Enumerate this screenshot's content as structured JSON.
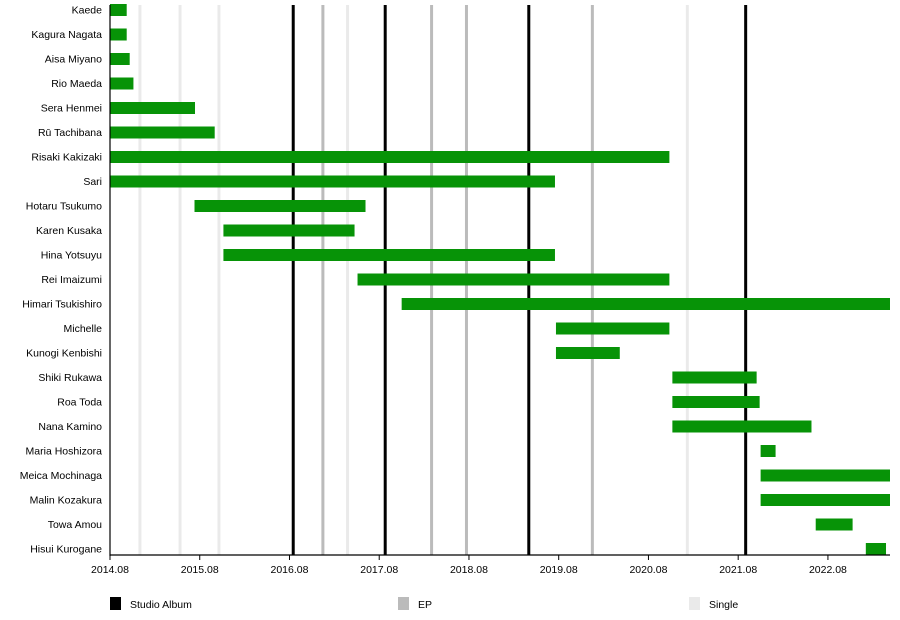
{
  "chart_data": {
    "type": "timeline",
    "x_axis": {
      "range": [
        "2014-08-01",
        "2023-04-10"
      ],
      "tick_labels": [
        "2014.08",
        "2015.08",
        "2016.08",
        "2017.08",
        "2018.08",
        "2019.08",
        "2020.08",
        "2021.08",
        "2022.08"
      ]
    },
    "colors": {
      "member_bar": "#079307",
      "Studio Album": "#000000",
      "EP": "#bbbbbb",
      "Single": "#eaeaea"
    },
    "members": [
      {
        "name": "Kaede",
        "start": "2014-08-01",
        "end": "2014-10-08"
      },
      {
        "name": "Kagura Nagata",
        "start": "2014-08-01",
        "end": "2014-10-08"
      },
      {
        "name": "Aisa Miyano",
        "start": "2014-08-01",
        "end": "2014-10-20"
      },
      {
        "name": "Rio Maeda",
        "start": "2014-08-01",
        "end": "2014-11-05"
      },
      {
        "name": "Sera Henmei",
        "start": "2014-08-01",
        "end": "2015-07-12"
      },
      {
        "name": "Rū Tachibana",
        "start": "2014-08-01",
        "end": "2015-10-01"
      },
      {
        "name": "Risaki Kakizaki",
        "start": "2014-08-01",
        "end": "2020-10-25"
      },
      {
        "name": "Sari",
        "start": "2014-08-01",
        "end": "2019-07-16"
      },
      {
        "name": "Hotaru Tsukumo",
        "start": "2015-07-10",
        "end": "2017-06-06"
      },
      {
        "name": "Karen Kusaka",
        "start": "2015-11-06",
        "end": "2017-04-22"
      },
      {
        "name": "Hina Yotsuyu",
        "start": "2015-11-06",
        "end": "2019-07-16"
      },
      {
        "name": "Rei Imaizumi",
        "start": "2017-05-04",
        "end": "2020-10-25"
      },
      {
        "name": "Himari Tsukishiro",
        "start": "2017-11-01",
        "end": "2023-04-10"
      },
      {
        "name": "Michelle",
        "start": "2019-07-20",
        "end": "2020-10-25"
      },
      {
        "name": "Kunogi Kenbishi",
        "start": "2019-07-20",
        "end": "2020-04-06"
      },
      {
        "name": "Shiki Rukawa",
        "start": "2020-11-07",
        "end": "2021-10-15"
      },
      {
        "name": "Roa Toda",
        "start": "2020-11-07",
        "end": "2021-10-27"
      },
      {
        "name": "Nana Kamino",
        "start": "2020-11-07",
        "end": "2022-05-25"
      },
      {
        "name": "Maria Hoshizora",
        "start": "2021-11-01",
        "end": "2022-01-01"
      },
      {
        "name": "Meica Mochinaga",
        "start": "2021-11-01",
        "end": "2023-04-10"
      },
      {
        "name": "Malin Kozakura",
        "start": "2021-11-01",
        "end": "2023-04-10"
      },
      {
        "name": "Towa Amou",
        "start": "2022-06-12",
        "end": "2022-11-10"
      },
      {
        "name": "Hisui Kurogane",
        "start": "2023-01-03",
        "end": "2023-03-24"
      }
    ],
    "releases": [
      {
        "type": "Single",
        "date": "2014-12-01"
      },
      {
        "type": "Single",
        "date": "2015-05-12"
      },
      {
        "type": "Single",
        "date": "2015-10-18"
      },
      {
        "type": "Single",
        "date": "2017-03-24"
      },
      {
        "type": "Single",
        "date": "2021-01-07"
      },
      {
        "type": "EP",
        "date": "2016-12-15"
      },
      {
        "type": "EP",
        "date": "2018-03-01"
      },
      {
        "type": "EP",
        "date": "2018-07-21"
      },
      {
        "type": "EP",
        "date": "2019-12-16"
      },
      {
        "type": "Studio Album",
        "date": "2016-08-16"
      },
      {
        "type": "Studio Album",
        "date": "2017-08-25"
      },
      {
        "type": "Studio Album",
        "date": "2019-04-01"
      },
      {
        "type": "Studio Album",
        "date": "2021-09-01"
      }
    ],
    "legend": {
      "position": "bottom",
      "items": [
        "Studio Album",
        "EP",
        "Single"
      ]
    }
  }
}
